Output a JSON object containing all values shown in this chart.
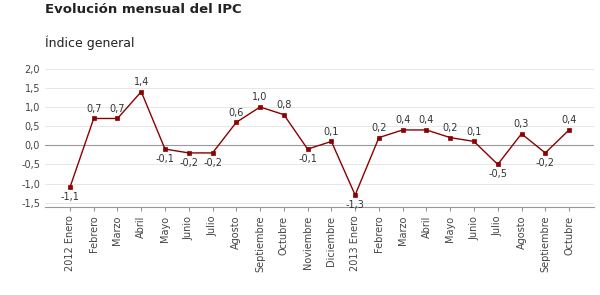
{
  "title_line1": "Evolución mensual del IPC",
  "title_line2": "Índice general",
  "labels": [
    "2012 Enero",
    "Febrero",
    "Marzo",
    "Abril",
    "Mayo",
    "Junio",
    "Julio",
    "Agosto",
    "Septiembre",
    "Octubre",
    "Noviembre",
    "Diciembre",
    "2013 Enero",
    "Febrero",
    "Marzo",
    "Abril",
    "Mayo",
    "Junio",
    "Julio",
    "Agosto",
    "Septiembre",
    "Octubre"
  ],
  "values": [
    -1.1,
    0.7,
    0.7,
    1.4,
    -0.1,
    -0.2,
    -0.2,
    0.6,
    1.0,
    0.8,
    -0.1,
    0.1,
    -1.3,
    0.2,
    0.4,
    0.4,
    0.2,
    0.1,
    -0.5,
    0.3,
    -0.2,
    0.4
  ],
  "line_color": "#8B0000",
  "marker_color": "#8B0000",
  "background_color": "#ffffff",
  "ylim": [
    -1.6,
    2.1
  ],
  "yticks": [
    -1.5,
    -1.0,
    -0.5,
    0.0,
    0.5,
    1.0,
    1.5,
    2.0
  ],
  "title_fontsize": 9.5,
  "label_fontsize": 7,
  "annotation_fontsize": 7
}
